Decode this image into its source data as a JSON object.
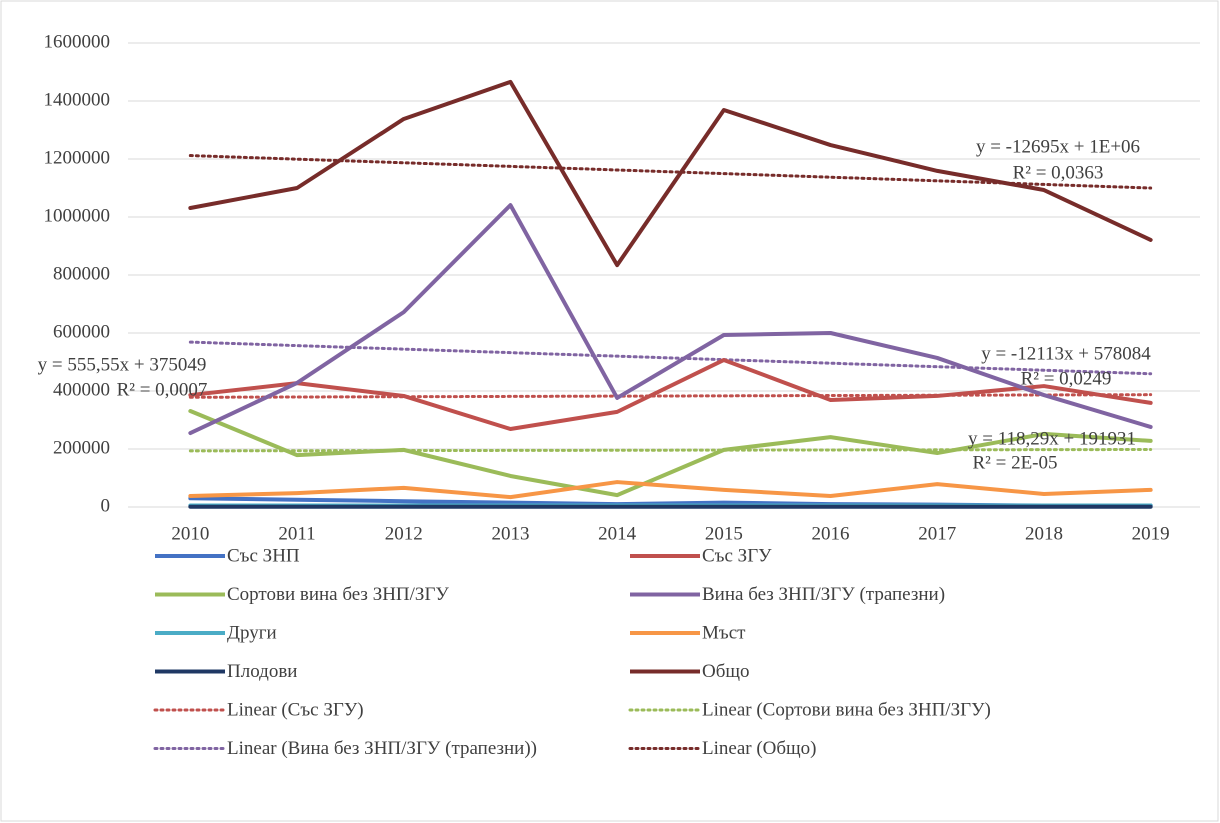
{
  "chart_data": {
    "type": "line",
    "categories": [
      "2010",
      "2011",
      "2012",
      "2013",
      "2014",
      "2015",
      "2016",
      "2017",
      "2018",
      "2019"
    ],
    "ylim": [
      0,
      1600000
    ],
    "yticks": [
      0,
      200000,
      400000,
      600000,
      800000,
      1000000,
      1200000,
      1400000,
      1600000
    ],
    "grid": true,
    "series": [
      {
        "name": "Със ЗНП",
        "color": "#4472c4",
        "values": [
          30000,
          25000,
          20000,
          15000,
          10000,
          15000,
          10000,
          8000,
          5000,
          5000
        ]
      },
      {
        "name": "Със ЗГУ",
        "color": "#c0504d",
        "values": [
          386000,
          427000,
          383000,
          269000,
          328000,
          507000,
          369000,
          383000,
          417000,
          359000
        ],
        "trendline": {
          "name": "Linear (Със ЗГУ)",
          "equation": "y = 555,55x + 375049",
          "r2": "R² = 0,0007"
        }
      },
      {
        "name": "Сортови вина без ЗНП/ЗГУ",
        "color": "#9bbb59",
        "values": [
          331000,
          179000,
          197000,
          107000,
          41000,
          197000,
          241000,
          186000,
          252000,
          228000
        ],
        "trendline": {
          "name": "Linear (Сортови вина без ЗНП/ЗГУ)",
          "equation": "y = 118,29x + 191931",
          "r2": "R² = 2E-05"
        }
      },
      {
        "name": "Вина без ЗНП/ЗГУ (трапезни)",
        "color": "#8064a2",
        "values": [
          255000,
          428000,
          672000,
          1041000,
          376000,
          593000,
          600000,
          514000,
          386000,
          276000
        ],
        "trendline": {
          "name": "Linear (Вина без ЗНП/ЗГУ (трапезни))",
          "equation": "y = -12113x + 578084",
          "r2": "R² = 0,0249"
        }
      },
      {
        "name": "Други",
        "color": "#4bacc6",
        "values": [
          5000,
          5000,
          5000,
          5000,
          5000,
          5000,
          5000,
          5000,
          5000,
          5000
        ]
      },
      {
        "name": "Мъст",
        "color": "#f79646",
        "values": [
          38000,
          48000,
          66000,
          34000,
          86000,
          59000,
          38000,
          79000,
          45000,
          59000
        ]
      },
      {
        "name": "Плодови",
        "color": "#1f3864",
        "values": [
          1000,
          1000,
          1000,
          1000,
          1000,
          1000,
          1000,
          1000,
          1000,
          1000
        ]
      },
      {
        "name": "Общо",
        "color": "#772c2a",
        "values": [
          1031000,
          1100000,
          1338000,
          1466000,
          834000,
          1369000,
          1248000,
          1159000,
          1093000,
          921000
        ],
        "trendline": {
          "name": "Linear (Общо)",
          "equation": "y = -12695x + 1E+06",
          "r2": "R² = 0,0363"
        }
      }
    ]
  }
}
